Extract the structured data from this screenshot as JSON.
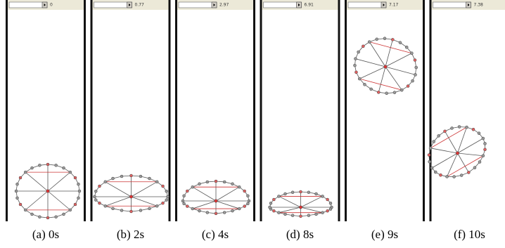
{
  "panels": [
    {
      "slider_value": "0",
      "caption": "(a) 0s"
    },
    {
      "slider_value": "0.77",
      "caption": "(b) 2s"
    },
    {
      "slider_value": "2.97",
      "caption": "(c) 4s"
    },
    {
      "slider_value": "6.91",
      "caption": "(d) 8s"
    },
    {
      "slider_value": "7.17",
      "caption": "(e) 9s"
    },
    {
      "slider_value": "7.38",
      "caption": "(f) 10s"
    }
  ]
}
